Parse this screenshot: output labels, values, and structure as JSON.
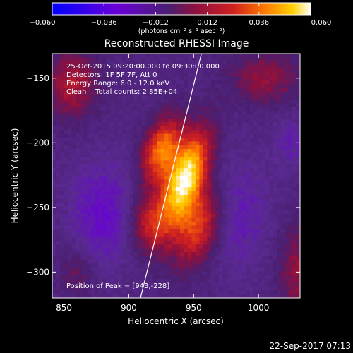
{
  "chart_data": {
    "type": "heatmap",
    "title": "Reconstructed RHESSI Image",
    "xlabel": "Heliocentric X (arcsec)",
    "ylabel": "Heliocentric Y (arcsec)",
    "xlim": [
      841,
      1032
    ],
    "ylim": [
      -320,
      -131
    ],
    "x_ticks": [
      850,
      900,
      950,
      1000
    ],
    "y_ticks": [
      -150,
      -200,
      -250,
      -300
    ],
    "colorbar": {
      "ticks": [
        -0.06,
        -0.036,
        -0.012,
        0.012,
        0.036,
        0.06
      ],
      "tick_labels": [
        "−0.060",
        "−0.036",
        "−0.012",
        "0.012",
        "0.036",
        "0.060"
      ],
      "range": [
        -0.06,
        0.06
      ],
      "units_label": "(photons cm⁻² s⁻¹ asec⁻²)"
    },
    "annotations": [
      "25-Oct-2015 09:20:00.000 to 09:30:00.000",
      "Detectors: 1F 5F 7F, Att 0",
      "Energy Range: 6.0 - 12.0 keV",
      "Clean    Total counts: 2.85E+04"
    ],
    "peak_label": "Position of Peak = [943,-228]",
    "peak": [
      943,
      -228
    ],
    "limb_line": [
      [
        909,
        -320
      ],
      [
        956,
        -131
      ]
    ],
    "timestamp": "22-Sep-2017 07:13",
    "colors": {
      "background": "#000000",
      "text": "#ffffff",
      "limb": "#ffffff",
      "colormap": [
        "#0000ff",
        "#6a00d8",
        "#5a2a92",
        "#4a1f70",
        "#8a1040",
        "#d02020",
        "#ff7800",
        "#ffd000",
        "#ffffff"
      ]
    }
  }
}
